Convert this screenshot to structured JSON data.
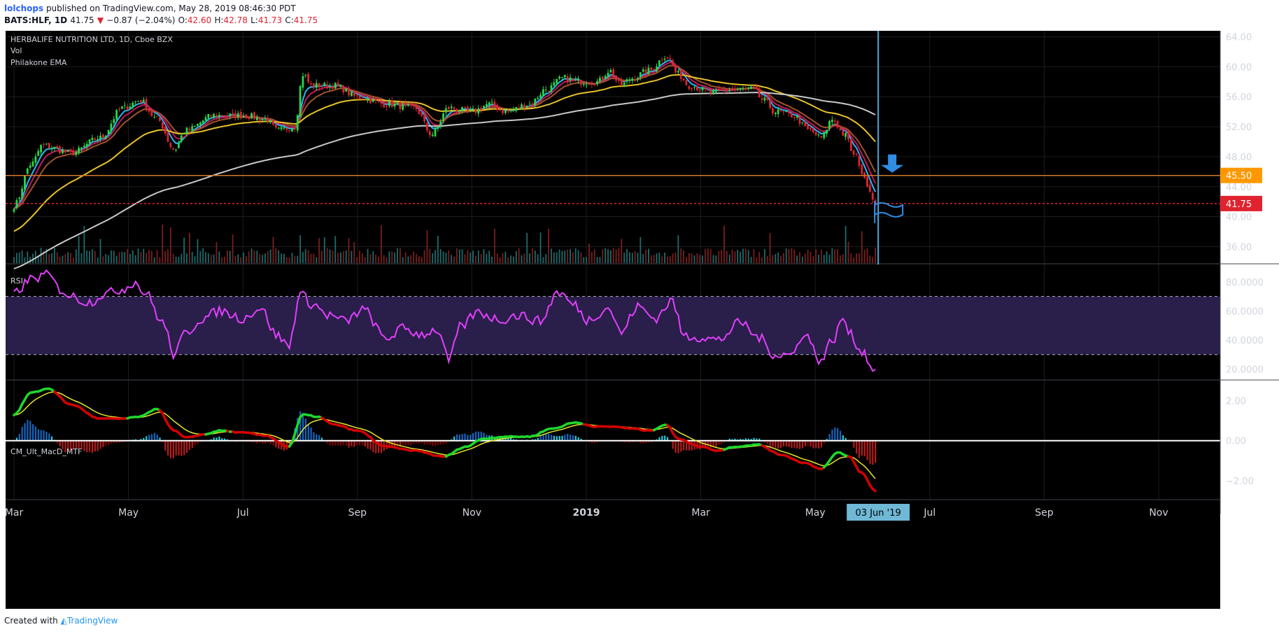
{
  "header": {
    "author": "lolchops",
    "published": "published on TradingView.com, May 28, 2019 08:46:30 PDT",
    "symbol": "BATS:HLF, 1D",
    "last": "41.75",
    "change": "−0.87 (−2.04%)",
    "o_label": "O:",
    "o_value": "42.60",
    "h_label": "H:",
    "h_value": "42.78",
    "l_label": "L:",
    "l_value": "41.73",
    "c_label": "C:",
    "c_value": "41.75"
  },
  "footer": {
    "created_with": "Created with",
    "brand": "TradingView"
  },
  "colors": {
    "background": "#000000",
    "grid": "#1d1d1d",
    "up": "#26d84a",
    "down": "#e0232e",
    "ema_fast": "#29b6f6",
    "ema_mid": "#c2185b",
    "ema_slow": "#a0522d",
    "ema_50": "#e6c229",
    "ema_200": "#c8c8c8",
    "rsi": "#e040fb",
    "rsi_band": "#2a1e4a",
    "macd_up": "#1ed82d",
    "macd_dn": "#d50000",
    "signal": "#e6e62a",
    "resistance": "#d47a2a",
    "price_tag": "#e0232e",
    "resistance_tag": "#ff9800",
    "vline": "#4fa8d8",
    "arrow": "#2f8de4"
  },
  "chart_data": [
    {
      "type": "candlestick",
      "title": "HERBALIFE NUTRITION LTD, 1D, Cboe BZX",
      "legend": [
        "Vol",
        "Philakone EMA"
      ],
      "y_ticks": [
        "64.00",
        "60.00",
        "56.00",
        "52.00",
        "48.00",
        "44.00",
        "40.00",
        "36.00"
      ],
      "ylim": [
        33.8,
        64.8
      ],
      "x_tick_labels": [
        "Mar",
        "May",
        "Jul",
        "Sep",
        "Nov",
        "2019",
        "Mar",
        "May",
        "Jul",
        "Sep",
        "Nov"
      ],
      "x_tick_months": [
        0,
        2,
        4,
        6,
        8,
        10,
        12,
        14,
        16,
        18,
        20
      ],
      "timeline_start": "2018-02-26",
      "cursor_date_label": "03 Jun '19",
      "cursor_month": 15.1,
      "resistance": {
        "value": 45.5,
        "label": "45.50"
      },
      "last_price": {
        "value": 41.75,
        "label": "41.75"
      },
      "price_anchors": [
        [
          0,
          41.5
        ],
        [
          0.3,
          47
        ],
        [
          0.5,
          49.5
        ],
        [
          1.0,
          48.5
        ],
        [
          1.5,
          50.5
        ],
        [
          1.9,
          54.5
        ],
        [
          2.2,
          55.5
        ],
        [
          2.5,
          53
        ],
        [
          2.8,
          49
        ],
        [
          3.0,
          51.5
        ],
        [
          3.5,
          53.5
        ],
        [
          4.0,
          53.5
        ],
        [
          4.4,
          53
        ],
        [
          4.6,
          51.5
        ],
        [
          4.9,
          52
        ],
        [
          5.05,
          59
        ],
        [
          5.2,
          57.5
        ],
        [
          5.6,
          57.5
        ],
        [
          6.0,
          56
        ],
        [
          6.5,
          55
        ],
        [
          7.0,
          54.5
        ],
        [
          7.3,
          51
        ],
        [
          7.6,
          54.5
        ],
        [
          8.0,
          54
        ],
        [
          8.3,
          55
        ],
        [
          8.6,
          54
        ],
        [
          9.0,
          55
        ],
        [
          9.3,
          57
        ],
        [
          9.6,
          58.5
        ],
        [
          9.9,
          58
        ],
        [
          10.2,
          58
        ],
        [
          10.4,
          59.5
        ],
        [
          10.6,
          57.5
        ],
        [
          10.8,
          58.5
        ],
        [
          11.1,
          59.5
        ],
        [
          11.4,
          61.5
        ],
        [
          11.6,
          59
        ],
        [
          11.8,
          57.5
        ],
        [
          12.2,
          56.5
        ],
        [
          12.6,
          57
        ],
        [
          12.9,
          57
        ],
        [
          13.1,
          55.5
        ],
        [
          13.3,
          54
        ],
        [
          13.6,
          53.5
        ],
        [
          13.9,
          51.5
        ],
        [
          14.1,
          50.5
        ],
        [
          14.3,
          53
        ],
        [
          14.5,
          51
        ],
        [
          14.7,
          48
        ],
        [
          14.9,
          44.5
        ],
        [
          15.05,
          41.75
        ]
      ],
      "volume_pattern": "daily volume bars, green on up days, red on down days",
      "ema_overlays": [
        "EMA fast (cyan)",
        "EMA (magenta)",
        "EMA (brown)",
        "EMA 50 (yellow)",
        "EMA 200 (grey)"
      ],
      "annotations": [
        "down arrow near 45.50",
        "flag marker near 41.75"
      ]
    },
    {
      "type": "line",
      "title": "RSI",
      "y_ticks": [
        "80.0000",
        "60.0000",
        "40.0000",
        "20.0000"
      ],
      "ylim": [
        13,
        92
      ],
      "band": [
        30,
        70
      ],
      "rsi_anchors": [
        [
          0,
          72
        ],
        [
          0.3,
          82
        ],
        [
          0.6,
          85
        ],
        [
          0.8,
          75
        ],
        [
          1.0,
          70
        ],
        [
          1.3,
          66
        ],
        [
          1.6,
          72
        ],
        [
          1.9,
          75
        ],
        [
          2.1,
          80
        ],
        [
          2.3,
          72
        ],
        [
          2.6,
          52
        ],
        [
          2.8,
          30
        ],
        [
          3.0,
          45
        ],
        [
          3.3,
          55
        ],
        [
          3.6,
          60
        ],
        [
          4.0,
          55
        ],
        [
          4.3,
          62
        ],
        [
          4.6,
          43
        ],
        [
          4.8,
          36
        ],
        [
          5.0,
          72
        ],
        [
          5.2,
          65
        ],
        [
          5.5,
          57
        ],
        [
          5.8,
          53
        ],
        [
          6.1,
          61
        ],
        [
          6.5,
          41
        ],
        [
          6.8,
          48
        ],
        [
          7.1,
          44
        ],
        [
          7.4,
          47
        ],
        [
          7.6,
          26
        ],
        [
          7.8,
          49
        ],
        [
          8.1,
          59
        ],
        [
          8.5,
          54
        ],
        [
          8.8,
          57
        ],
        [
          9.2,
          53
        ],
        [
          9.5,
          73
        ],
        [
          9.8,
          64
        ],
        [
          10.0,
          54
        ],
        [
          10.4,
          62
        ],
        [
          10.6,
          45
        ],
        [
          10.9,
          63
        ],
        [
          11.2,
          55
        ],
        [
          11.5,
          67
        ],
        [
          11.7,
          43
        ],
        [
          12.0,
          42
        ],
        [
          12.3,
          40
        ],
        [
          12.7,
          52
        ],
        [
          13.0,
          42
        ],
        [
          13.3,
          30
        ],
        [
          13.6,
          30
        ],
        [
          13.8,
          45
        ],
        [
          14.1,
          26
        ],
        [
          14.3,
          40
        ],
        [
          14.5,
          55
        ],
        [
          14.6,
          44
        ],
        [
          14.8,
          33
        ],
        [
          15.05,
          19
        ]
      ]
    },
    {
      "type": "histogram",
      "title": "CM_Ult_MacD_MTF",
      "y_ticks": [
        "2.00",
        "0.00",
        "−2.00"
      ],
      "ylim": [
        -2.95,
        3.0
      ],
      "macd_anchors": [
        [
          0,
          1.3
        ],
        [
          0.3,
          2.4
        ],
        [
          0.6,
          2.6
        ],
        [
          1.0,
          1.8
        ],
        [
          1.5,
          1.1
        ],
        [
          1.9,
          1.1
        ],
        [
          2.2,
          1.2
        ],
        [
          2.5,
          1.6
        ],
        [
          2.8,
          0.5
        ],
        [
          3.0,
          0.15
        ],
        [
          3.3,
          0.3
        ],
        [
          3.6,
          0.5
        ],
        [
          4.0,
          0.4
        ],
        [
          4.4,
          0.25
        ],
        [
          4.8,
          -0.3
        ],
        [
          5.05,
          1.3
        ],
        [
          5.3,
          1.2
        ],
        [
          5.6,
          0.8
        ],
        [
          6.0,
          0.5
        ],
        [
          6.5,
          -0.3
        ],
        [
          7.0,
          -0.5
        ],
        [
          7.5,
          -0.8
        ],
        [
          7.9,
          -0.3
        ],
        [
          8.2,
          0.1
        ],
        [
          8.6,
          0.2
        ],
        [
          9.0,
          0.2
        ],
        [
          9.4,
          0.6
        ],
        [
          9.8,
          0.9
        ],
        [
          10.2,
          0.7
        ],
        [
          10.5,
          0.7
        ],
        [
          10.8,
          0.6
        ],
        [
          11.1,
          0.5
        ],
        [
          11.4,
          0.8
        ],
        [
          11.6,
          0.1
        ],
        [
          12.0,
          -0.3
        ],
        [
          12.3,
          -0.5
        ],
        [
          12.6,
          -0.3
        ],
        [
          13.0,
          -0.2
        ],
        [
          13.4,
          -0.7
        ],
        [
          13.8,
          -1.1
        ],
        [
          14.1,
          -1.4
        ],
        [
          14.4,
          -0.6
        ],
        [
          14.6,
          -0.8
        ],
        [
          14.8,
          -1.6
        ],
        [
          15.05,
          -2.5
        ]
      ]
    }
  ]
}
